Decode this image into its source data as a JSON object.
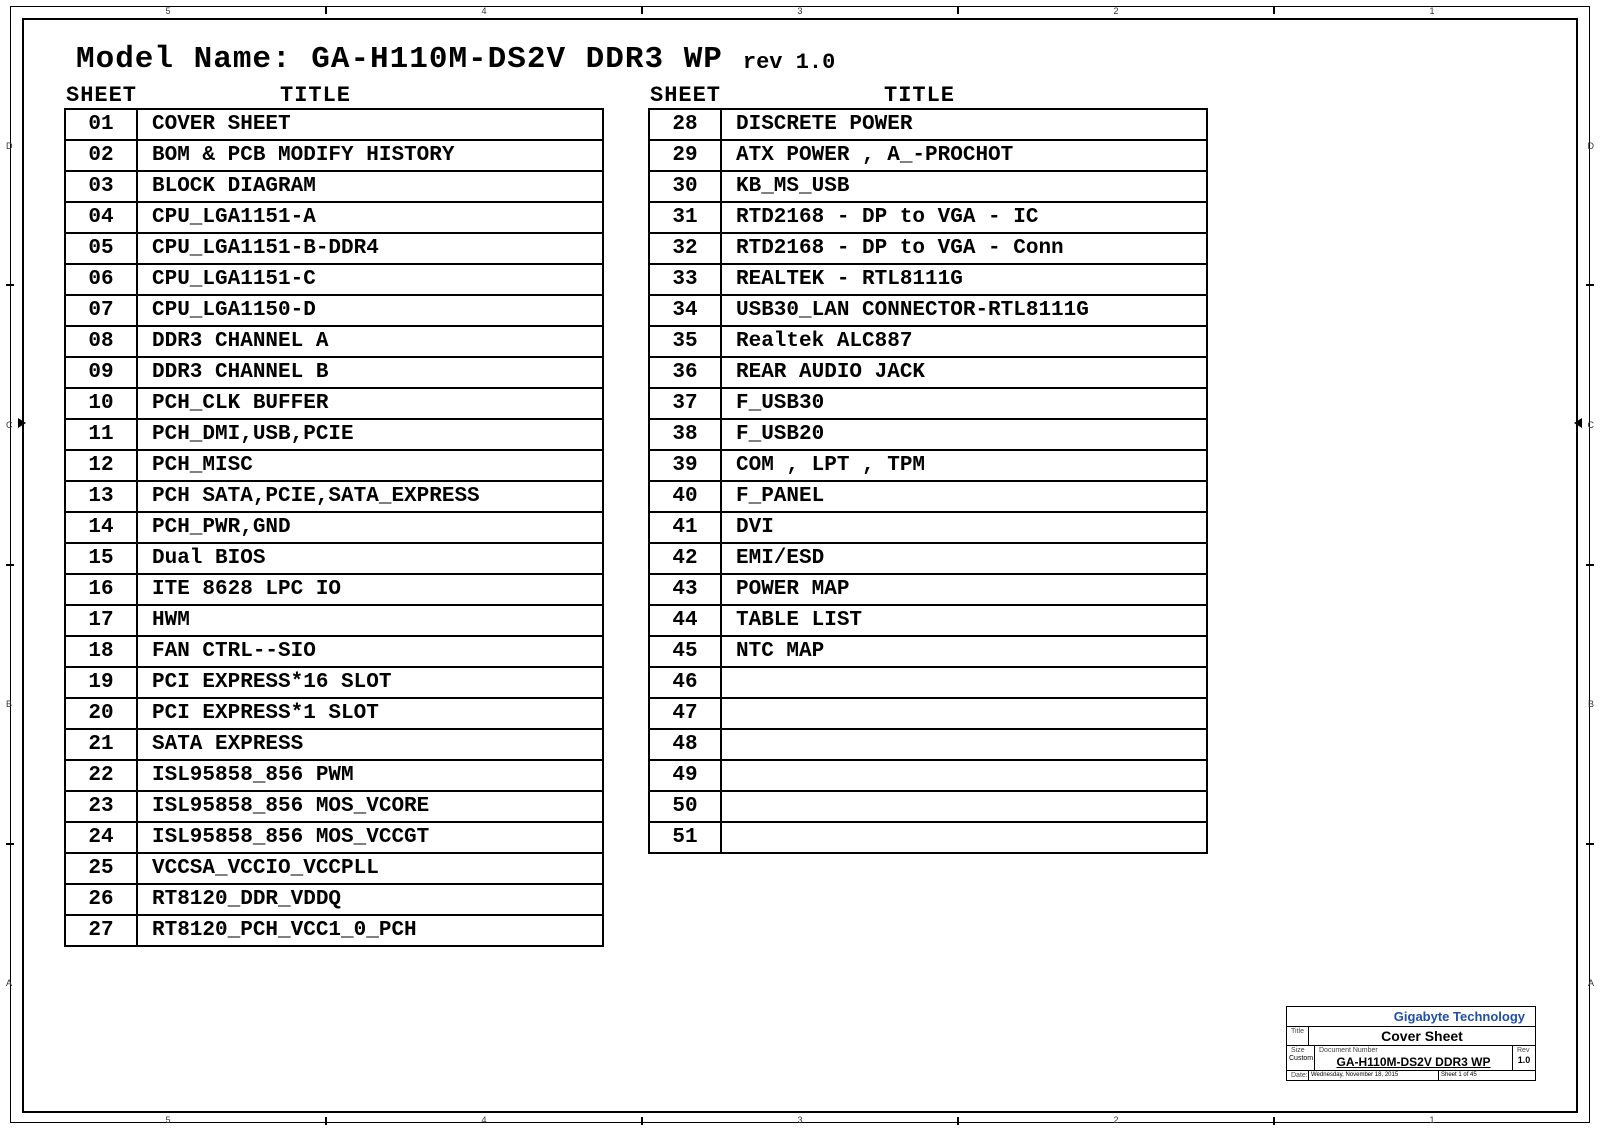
{
  "model_name": "Model Name: GA-H110M-DS2V DDR3 WP",
  "revision": "rev 1.0",
  "col_headers": {
    "sheet": "SHEET",
    "title": "TITLE"
  },
  "left_rows": [
    {
      "n": "01",
      "t": "COVER SHEET"
    },
    {
      "n": "02",
      "t": "BOM & PCB MODIFY HISTORY"
    },
    {
      "n": "03",
      "t": "BLOCK DIAGRAM"
    },
    {
      "n": "04",
      "t": "CPU_LGA1151-A"
    },
    {
      "n": "05",
      "t": "CPU_LGA1151-B-DDR4"
    },
    {
      "n": "06",
      "t": "CPU_LGA1151-C"
    },
    {
      "n": "07",
      "t": "CPU_LGA1150-D"
    },
    {
      "n": "08",
      "t": "DDR3 CHANNEL A"
    },
    {
      "n": "09",
      "t": "DDR3 CHANNEL B"
    },
    {
      "n": "10",
      "t": "PCH_CLK BUFFER"
    },
    {
      "n": "11",
      "t": "PCH_DMI,USB,PCIE"
    },
    {
      "n": "12",
      "t": "PCH_MISC"
    },
    {
      "n": "13",
      "t": "PCH SATA,PCIE,SATA_EXPRESS"
    },
    {
      "n": "14",
      "t": "PCH_PWR,GND"
    },
    {
      "n": "15",
      "t": "Dual BIOS"
    },
    {
      "n": "16",
      "t": "ITE 8628 LPC IO"
    },
    {
      "n": "17",
      "t": "HWM"
    },
    {
      "n": "18",
      "t": "FAN CTRL--SIO"
    },
    {
      "n": "19",
      "t": "PCI EXPRESS*16 SLOT"
    },
    {
      "n": "20",
      "t": "PCI EXPRESS*1 SLOT"
    },
    {
      "n": "21",
      "t": "SATA EXPRESS"
    },
    {
      "n": "22",
      "t": "ISL95858_856 PWM"
    },
    {
      "n": "23",
      "t": "ISL95858_856 MOS_VCORE"
    },
    {
      "n": "24",
      "t": "ISL95858_856 MOS_VCCGT"
    },
    {
      "n": "25",
      "t": "VCCSA_VCCIO_VCCPLL"
    },
    {
      "n": "26",
      "t": "RT8120_DDR_VDDQ"
    },
    {
      "n": "27",
      "t": "RT8120_PCH_VCC1_0_PCH"
    }
  ],
  "right_rows": [
    {
      "n": "28",
      "t": "DISCRETE POWER"
    },
    {
      "n": "29",
      "t": "ATX  POWER , A_-PROCHOT"
    },
    {
      "n": "30",
      "t": "KB_MS_USB"
    },
    {
      "n": "31",
      "t": "RTD2168 - DP to VGA - IC"
    },
    {
      "n": "32",
      "t": "RTD2168 - DP to VGA - Conn"
    },
    {
      "n": "33",
      "t": "REALTEK - RTL8111G"
    },
    {
      "n": "34",
      "t": "USB30_LAN CONNECTOR-RTL8111G"
    },
    {
      "n": "35",
      "t": "Realtek ALC887"
    },
    {
      "n": "36",
      "t": "REAR AUDIO JACK"
    },
    {
      "n": "37",
      "t": "F_USB30"
    },
    {
      "n": "38",
      "t": "F_USB20"
    },
    {
      "n": "39",
      "t": "COM , LPT , TPM"
    },
    {
      "n": "40",
      "t": "F_PANEL"
    },
    {
      "n": "41",
      "t": "DVI"
    },
    {
      "n": "42",
      "t": "EMI/ESD"
    },
    {
      "n": "43",
      "t": "POWER MAP"
    },
    {
      "n": "44",
      "t": "TABLE LIST"
    },
    {
      "n": "45",
      "t": "NTC  MAP"
    },
    {
      "n": "46",
      "t": ""
    },
    {
      "n": "47",
      "t": ""
    },
    {
      "n": "48",
      "t": ""
    },
    {
      "n": "49",
      "t": ""
    },
    {
      "n": "50",
      "t": ""
    },
    {
      "n": "51",
      "t": ""
    }
  ],
  "titleblock": {
    "company": "Gigabyte Technology",
    "title_label": "Title",
    "title": "Cover Sheet",
    "size_label": "Size",
    "size": "Custom",
    "docnum_label": "Document Number",
    "docnum": "GA-H110M-DS2V DDR3 WP",
    "rev_label": "Rev",
    "rev": "1.0",
    "date_label": "Date:",
    "date": "Wednesday, November 18, 2015",
    "sheet_info": "Sheet       1       of       45"
  },
  "frame": {
    "top_nums": [
      "5",
      "4",
      "3",
      "2",
      "1"
    ],
    "side_letters": [
      "D",
      "C",
      "B",
      "A"
    ]
  }
}
